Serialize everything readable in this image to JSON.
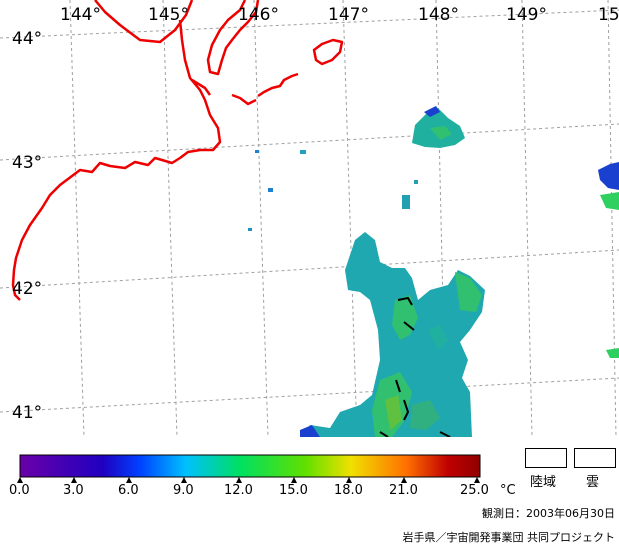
{
  "map": {
    "longitude_labels": [
      "144°",
      "145°",
      "146°",
      "147°",
      "148°",
      "149°",
      "15"
    ],
    "latitude_labels": [
      "44°",
      "43°",
      "42°",
      "41°"
    ]
  },
  "legend": {
    "tick_labels": [
      "0.0",
      "3.0",
      "6.0",
      "9.0",
      "12.0",
      "15.0",
      "18.0",
      "21.0",
      "25.0"
    ],
    "unit": "°C",
    "land_label": "陸域",
    "cloud_label": "雲",
    "colors": [
      "#6a00a8",
      "#2000c0",
      "#0040ff",
      "#00c0ff",
      "#00e060",
      "#60e000",
      "#f0e000",
      "#ff7000",
      "#c00000",
      "#900000"
    ]
  },
  "footer": {
    "observation_date": "観測日：2003年06月30日",
    "credit": "岩手県／宇宙開発事業団 共同プロジェクト"
  }
}
